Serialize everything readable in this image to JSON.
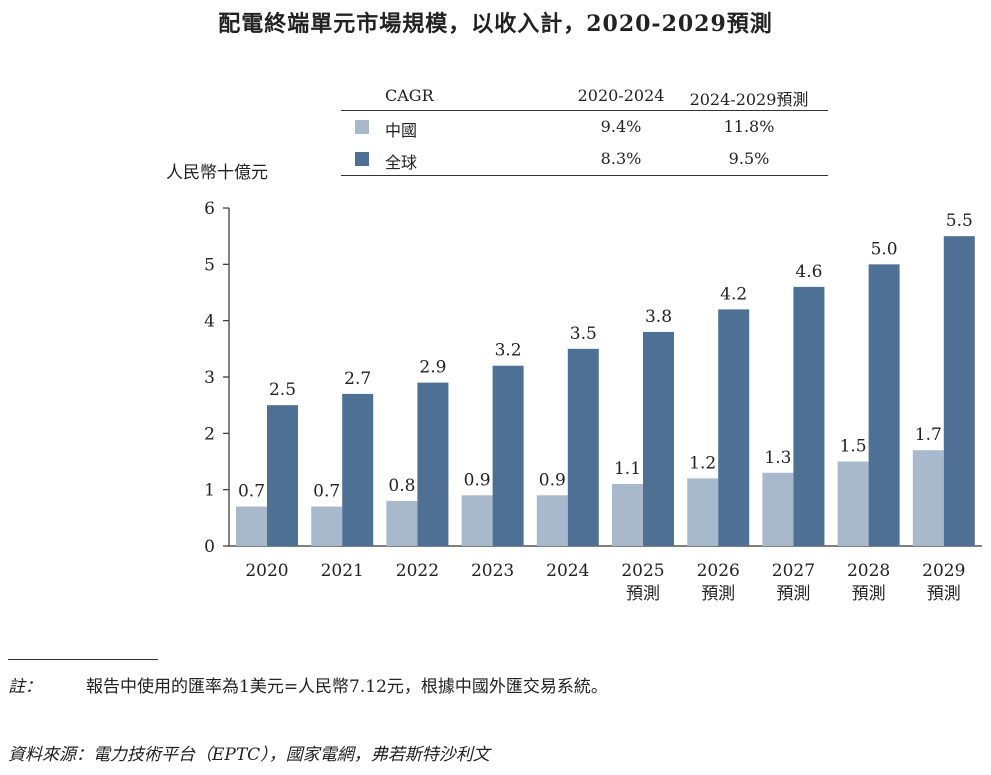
{
  "title": "配電終端單元市場規模，以收入計，2020-2029預測",
  "cagr_table": {
    "header": [
      "CAGR",
      "2020-2024",
      "2024-2029預測"
    ],
    "rows": [
      {
        "label": "中國",
        "color": "#a9b9cc",
        "values": [
          "9.4%",
          "11.8%"
        ]
      },
      {
        "label": "全球",
        "color": "#4f7095",
        "values": [
          "8.3%",
          "9.5%"
        ]
      }
    ]
  },
  "chart_data": {
    "type": "bar",
    "ylabel": "人民幣十億元",
    "ylim": [
      0,
      6
    ],
    "yticks": [
      "0",
      "1",
      "2",
      "3",
      "4",
      "5",
      "6"
    ],
    "categories": [
      [
        "2020"
      ],
      [
        "2021"
      ],
      [
        "2022"
      ],
      [
        "2023"
      ],
      [
        "2024"
      ],
      [
        "2025",
        "預測"
      ],
      [
        "2026",
        "預測"
      ],
      [
        "2027",
        "預測"
      ],
      [
        "2028",
        "預測"
      ],
      [
        "2029",
        "預測"
      ]
    ],
    "series": [
      {
        "name": "中國",
        "color": "#a9b9cc",
        "values": [
          0.7,
          0.7,
          0.8,
          0.9,
          0.9,
          1.1,
          1.2,
          1.3,
          1.5,
          1.7
        ],
        "labels": [
          "0.7",
          "0.7",
          "0.8",
          "0.9",
          "0.9",
          "1.1",
          "1.2",
          "1.3",
          "1.5",
          "1.7"
        ]
      },
      {
        "name": "全球",
        "color": "#4f7095",
        "values": [
          2.5,
          2.7,
          2.9,
          3.2,
          3.5,
          3.8,
          4.2,
          4.6,
          5.0,
          5.5
        ],
        "labels": [
          "2.5",
          "2.7",
          "2.9",
          "3.2",
          "3.5",
          "3.8",
          "4.2",
          "4.6",
          "5.0",
          "5.5"
        ]
      }
    ]
  },
  "note": {
    "label": "註：",
    "text": "報告中使用的匯率為1美元=人民幣7.12元，根據中國外匯交易系統。"
  },
  "source": "資料來源：電力技術平台（EPTC），國家電網，弗若斯特沙利文"
}
